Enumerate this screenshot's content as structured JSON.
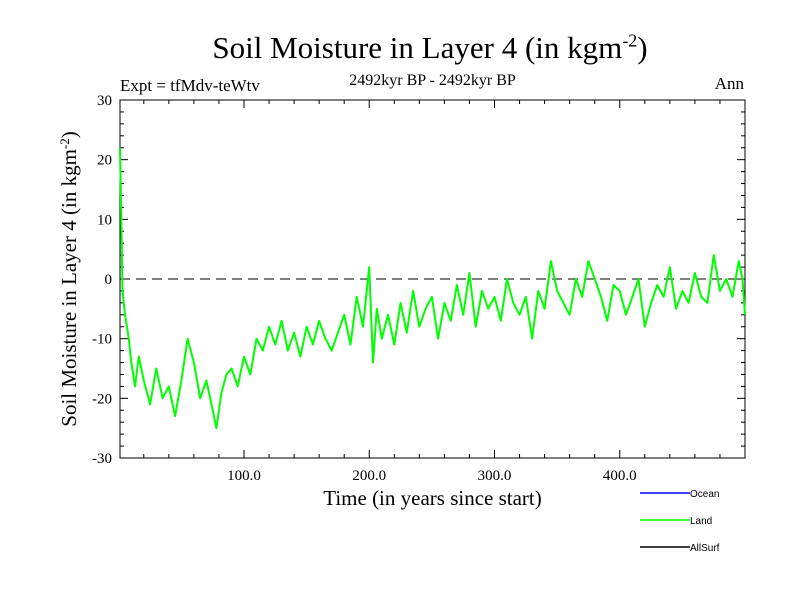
{
  "header": {
    "title": "Soil Moisture in Layer 4 (in kgm",
    "title_sup": "-2",
    "title_close": ")",
    "subtitle": "2492kyr BP - 2492kyr BP",
    "expt": "Expt = tfMdv-teWtv",
    "period": "Ann"
  },
  "chart_data": {
    "type": "line",
    "title": "Soil Moisture in Layer 4 (in kgm-2)",
    "xlabel": "Time (in years since start)",
    "ylabel": "Soil Moisture in Layer 4 (in kgm-2)",
    "ylabel_main": "Soil Moisture in Layer 4 (in kgm",
    "ylabel_sup": "-2",
    "ylabel_close": ")",
    "xlim": [
      1,
      500
    ],
    "ylim": [
      -30,
      30
    ],
    "x_ticks": [
      100,
      200,
      300,
      400
    ],
    "x_tick_labels": [
      "100.0",
      "200.0",
      "300.0",
      "400.0"
    ],
    "y_ticks": [
      -30,
      -20,
      -10,
      0,
      10,
      20,
      30
    ],
    "y_tick_labels": [
      "-30",
      "-20",
      "-10",
      "0",
      "10",
      "20",
      "30"
    ],
    "zero_line": true,
    "grid": false,
    "legend_position": "bottom-right",
    "legend": [
      {
        "name": "Ocean",
        "color": "#0000ff"
      },
      {
        "name": "Land",
        "color": "#00ff00"
      },
      {
        "name": "AllSurf",
        "color": "#000000"
      }
    ],
    "series": [
      {
        "name": "Land",
        "color": "#00ff00",
        "x": [
          1,
          2,
          3,
          5,
          8,
          10,
          13,
          16,
          20,
          25,
          30,
          35,
          40,
          45,
          50,
          55,
          60,
          65,
          70,
          75,
          78,
          82,
          86,
          90,
          95,
          100,
          105,
          110,
          115,
          120,
          125,
          130,
          135,
          140,
          145,
          150,
          155,
          160,
          165,
          170,
          175,
          180,
          185,
          190,
          195,
          200,
          203,
          206,
          210,
          215,
          220,
          225,
          230,
          235,
          240,
          245,
          250,
          255,
          260,
          265,
          270,
          275,
          280,
          285,
          290,
          295,
          300,
          305,
          310,
          315,
          320,
          325,
          330,
          335,
          340,
          345,
          350,
          355,
          360,
          365,
          370,
          375,
          380,
          385,
          390,
          395,
          400,
          405,
          410,
          415,
          420,
          425,
          430,
          435,
          440,
          445,
          450,
          455,
          460,
          465,
          470,
          475,
          480,
          485,
          490,
          495,
          498,
          500
        ],
        "y": [
          22,
          10,
          -2,
          -6,
          -10,
          -14,
          -18,
          -13,
          -17,
          -21,
          -15,
          -20,
          -18,
          -23,
          -17,
          -10,
          -14,
          -20,
          -17,
          -22,
          -25,
          -19,
          -16,
          -15,
          -18,
          -13,
          -16,
          -10,
          -12,
          -8,
          -11,
          -7,
          -12,
          -9,
          -13,
          -8,
          -11,
          -7,
          -10,
          -12,
          -9,
          -6,
          -11,
          -3,
          -8,
          2,
          -14,
          -5,
          -10,
          -6,
          -11,
          -4,
          -9,
          -2,
          -8,
          -5,
          -3,
          -10,
          -4,
          -7,
          -1,
          -6,
          1,
          -8,
          -2,
          -5,
          -3,
          -7,
          0,
          -4,
          -6,
          -3,
          -10,
          -2,
          -5,
          3,
          -2,
          -4,
          -6,
          0,
          -3,
          3,
          0,
          -3,
          -7,
          -1,
          -2,
          -6,
          -3,
          0,
          -8,
          -4,
          -1,
          -3,
          2,
          -5,
          -2,
          -4,
          1,
          -3,
          -4,
          4,
          -2,
          0,
          -3,
          3,
          0,
          -6
        ]
      }
    ]
  }
}
